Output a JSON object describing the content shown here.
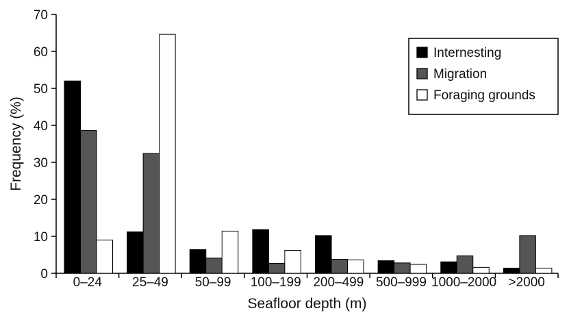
{
  "chart_data": {
    "type": "bar",
    "title": "",
    "xlabel": "Seafloor depth (m)",
    "ylabel": "Frequency (%)",
    "ylim": [
      0,
      70
    ],
    "yticks": [
      0,
      10,
      20,
      30,
      40,
      50,
      60,
      70
    ],
    "categories": [
      "0–24",
      "25–49",
      "50–99",
      "100–199",
      "200–499",
      "500–999",
      "1000–2000",
      ">2000"
    ],
    "series": [
      {
        "name": "Internesting",
        "color": "#000000",
        "values": [
          52,
          11.2,
          6.4,
          11.8,
          10.2,
          3.4,
          3.1,
          1.4
        ]
      },
      {
        "name": "Migration",
        "color": "#555555",
        "values": [
          38.6,
          32.4,
          4.1,
          2.7,
          3.8,
          2.8,
          4.7,
          10.2
        ]
      },
      {
        "name": "Foraging grounds",
        "color": "#ffffff",
        "values": [
          9,
          64.6,
          11.4,
          6.2,
          3.6,
          2.4,
          1.6,
          1.4
        ]
      }
    ],
    "legend_position": "top-right",
    "grid": false
  }
}
